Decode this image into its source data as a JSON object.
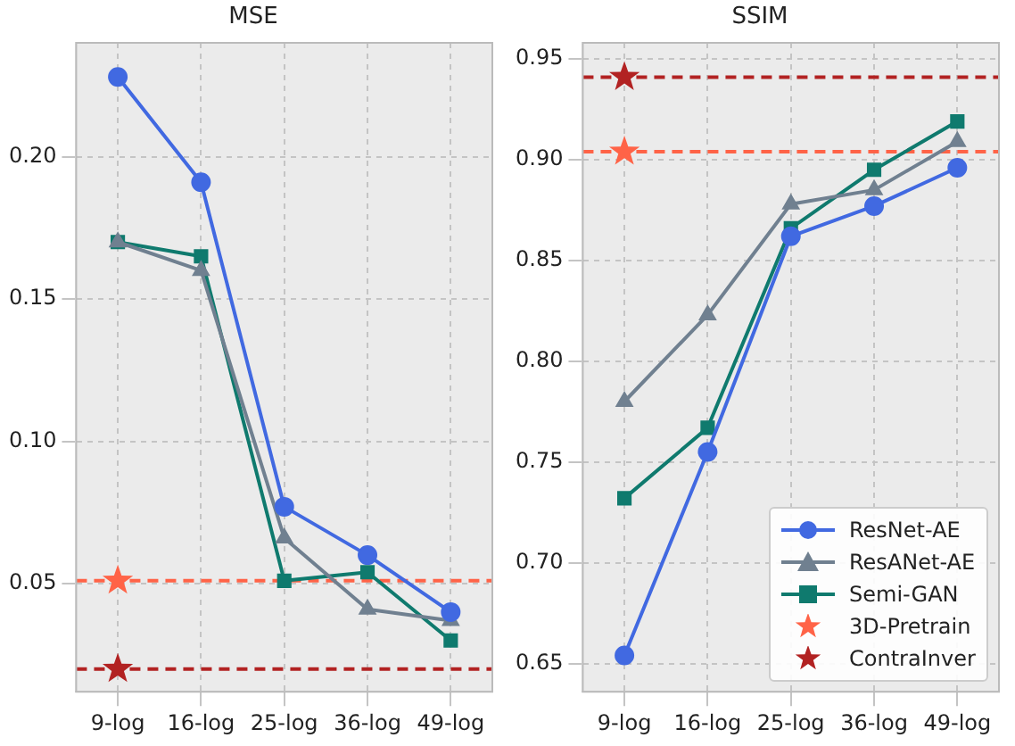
{
  "chart_data": [
    {
      "type": "line",
      "title": "MSE",
      "categories": [
        "9-log",
        "16-log",
        "25-log",
        "36-log",
        "49-log"
      ],
      "series": [
        {
          "color": "#4169e1",
          "marker": "circle",
          "values": [
            0.228,
            0.191,
            0.077,
            0.06,
            0.04
          ]
        },
        {
          "color": "#708090",
          "marker": "triangle",
          "values": [
            0.17,
            0.16,
            0.066,
            0.041,
            0.037
          ]
        },
        {
          "color": "#0f7a6e",
          "marker": "square",
          "values": [
            0.17,
            0.165,
            0.051,
            0.054,
            0.03
          ]
        },
        {
          "type": "scatter",
          "color": "#ff6347",
          "marker": "star",
          "x": [
            "9-log"
          ],
          "values": [
            0.051
          ]
        },
        {
          "type": "scatter",
          "color": "#b22222",
          "marker": "star",
          "x": [
            "9-log"
          ],
          "values": [
            0.02
          ]
        }
      ],
      "ref_lines": [
        {
          "axis": "y",
          "value": 0.051,
          "color": "#ff6347",
          "line_style": "dashed"
        },
        {
          "axis": "y",
          "value": 0.02,
          "color": "#b22222",
          "line_style": "dashed"
        }
      ],
      "ylim": [
        0.012,
        0.24
      ],
      "yticks": [
        0.05,
        {
          "value": 0.1,
          "label": "0.10"
        },
        0.15,
        {
          "value": 0.2,
          "label": "0.20"
        }
      ],
      "grid": true,
      "legend": false
    },
    {
      "type": "line",
      "title": "SSIM",
      "categories": [
        "9-log",
        "16-log",
        "25-log",
        "36-log",
        "49-log"
      ],
      "series": [
        {
          "name": "ResNet-AE",
          "color": "#4169e1",
          "marker": "circle",
          "values": [
            0.654,
            0.755,
            0.862,
            0.877,
            0.896
          ]
        },
        {
          "name": "ResANet-AE",
          "color": "#708090",
          "marker": "triangle",
          "values": [
            0.78,
            0.823,
            0.878,
            0.885,
            0.909
          ]
        },
        {
          "name": "Semi-GAN",
          "color": "#0f7a6e",
          "marker": "square",
          "values": [
            0.732,
            0.767,
            0.866,
            0.895,
            0.919
          ]
        },
        {
          "name": "3D-Pretrain",
          "type": "scatter",
          "color": "#ff6347",
          "marker": "star",
          "x": [
            "9-log"
          ],
          "values": [
            0.904
          ]
        },
        {
          "name": "ContraInver",
          "type": "scatter",
          "color": "#b22222",
          "marker": "star",
          "x": [
            "9-log"
          ],
          "values": [
            0.941
          ]
        }
      ],
      "ref_lines": [
        {
          "axis": "y",
          "value": 0.904,
          "color": "#ff6347",
          "line_style": "dashed"
        },
        {
          "axis": "y",
          "value": 0.941,
          "color": "#b22222",
          "line_style": "dashed"
        }
      ],
      "ylim": [
        0.636,
        0.958
      ],
      "yticks": [
        0.65,
        {
          "value": 0.7,
          "label": "0.70"
        },
        0.75,
        {
          "value": 0.8,
          "label": "0.80"
        },
        0.85,
        {
          "value": 0.9,
          "label": "0.90"
        },
        0.95
      ],
      "grid": true,
      "legend": "bottom right"
    }
  ]
}
